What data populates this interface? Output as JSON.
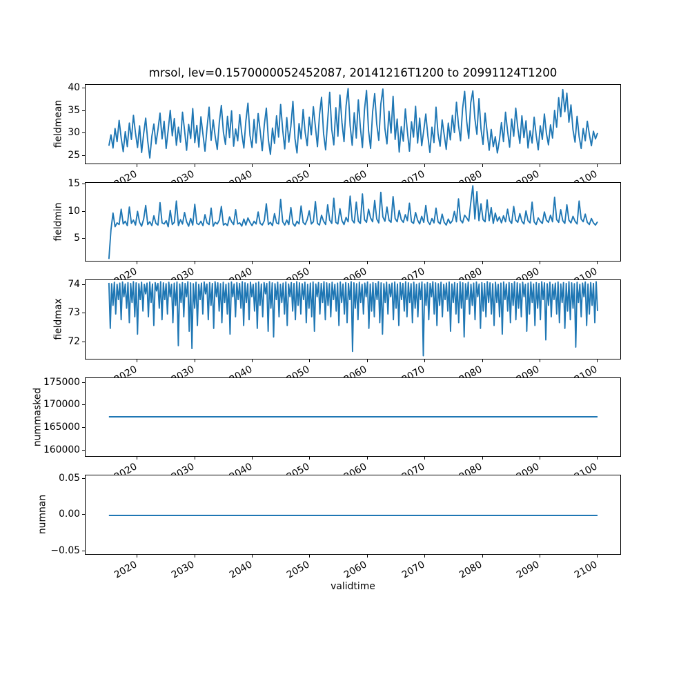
{
  "chart_data": {
    "type": "line",
    "title": "mrsol, lev=0.1570000052452087, 20141216T1200 to 20991124T1200",
    "xlabel": "validtime",
    "line_color": "#1f77b4",
    "background": "#ffffff",
    "grid": false,
    "legend": "none",
    "xlim": [
      2010.9,
      2104.1
    ],
    "x_ticks": [
      2020,
      2030,
      2040,
      2050,
      2060,
      2070,
      2080,
      2090,
      2100
    ],
    "x_tick_labels": [
      "2020",
      "2030",
      "2040",
      "2050",
      "2060",
      "2070",
      "2080",
      "2090",
      "2100"
    ],
    "subplots": [
      {
        "name": "fieldmean",
        "ylabel": "fieldmean",
        "ylim": [
          23.2,
          40.8
        ],
        "yticks": [
          25,
          30,
          35,
          40
        ],
        "ytick_labels": [
          "25",
          "30",
          "35",
          "40"
        ],
        "x_start": 2014.96,
        "x_end": 2099.9,
        "values": [
          27.4,
          29.8,
          26.9,
          31.2,
          28.3,
          33.0,
          29.1,
          26.1,
          30.5,
          27.2,
          32.4,
          28.8,
          34.1,
          30.2,
          27.0,
          31.8,
          25.9,
          30.1,
          33.5,
          28.4,
          24.7,
          29.5,
          32.2,
          27.8,
          31.0,
          34.6,
          28.9,
          32.8,
          26.8,
          30.9,
          35.2,
          29.6,
          33.4,
          27.5,
          31.5,
          28.2,
          34.8,
          30.8,
          26.4,
          32.1,
          29.0,
          35.6,
          28.1,
          31.9,
          27.1,
          33.8,
          29.9,
          26.2,
          31.4,
          35.9,
          28.6,
          33.1,
          29.4,
          26.6,
          32.6,
          36.3,
          30.4,
          27.7,
          33.9,
          29.2,
          35.1,
          27.3,
          31.1,
          28.5,
          34.3,
          30.0,
          26.9,
          32.9,
          36.8,
          29.7,
          27.0,
          33.2,
          28.0,
          34.5,
          30.6,
          26.3,
          32.0,
          35.7,
          28.7,
          25.5,
          31.3,
          27.9,
          34.0,
          29.3,
          36.5,
          30.9,
          26.7,
          33.6,
          28.2,
          31.7,
          37.2,
          29.0,
          25.8,
          32.3,
          28.9,
          35.4,
          30.3,
          27.4,
          33.7,
          29.8,
          36.0,
          31.6,
          27.2,
          34.2,
          38.1,
          30.1,
          26.5,
          33.0,
          39.2,
          31.0,
          27.6,
          35.8,
          29.5,
          38.6,
          32.5,
          28.3,
          36.2,
          40.0,
          31.8,
          27.5,
          34.7,
          29.1,
          37.5,
          31.4,
          27.0,
          35.3,
          39.6,
          30.7,
          26.8,
          34.9,
          38.9,
          32.2,
          28.6,
          36.6,
          39.9,
          31.2,
          27.8,
          35.0,
          30.2,
          38.3,
          28.8,
          33.3,
          26.0,
          31.6,
          28.4,
          35.5,
          30.5,
          26.2,
          32.7,
          29.3,
          36.1,
          28.0,
          33.5,
          27.4,
          30.8,
          34.4,
          29.6,
          25.9,
          31.5,
          28.1,
          35.9,
          30.0,
          27.3,
          33.1,
          29.8,
          26.6,
          32.4,
          28.7,
          34.1,
          30.3,
          37.0,
          31.9,
          28.5,
          35.6,
          39.4,
          32.8,
          29.0,
          36.9,
          39.5,
          33.4,
          29.9,
          37.8,
          31.1,
          27.7,
          34.6,
          30.4,
          26.4,
          31.0,
          27.2,
          29.4,
          25.8,
          28.6,
          32.5,
          28.3,
          34.8,
          30.6,
          27.1,
          33.3,
          29.5,
          35.7,
          31.3,
          27.9,
          34.0,
          29.2,
          32.9,
          26.9,
          30.7,
          28.0,
          33.7,
          29.7,
          26.5,
          31.8,
          28.8,
          34.4,
          30.1,
          27.6,
          32.0,
          29.1,
          35.2,
          31.5,
          38.0,
          33.8,
          39.8,
          34.9,
          39.0,
          32.6,
          36.4,
          30.9,
          28.2,
          33.9,
          29.4,
          26.8,
          31.2,
          28.5,
          32.8,
          29.9,
          27.4,
          30.6,
          28.9,
          30.2
        ]
      },
      {
        "name": "fieldmin",
        "ylabel": "fieldmin",
        "ylim": [
          0.8,
          15.4
        ],
        "yticks": [
          5,
          10,
          15
        ],
        "ytick_labels": [
          "5",
          "10",
          "15"
        ],
        "x_start": 2014.96,
        "x_end": 2099.9,
        "values": [
          1.5,
          6.8,
          9.9,
          7.4,
          8.1,
          7.8,
          10.6,
          7.9,
          8.4,
          7.6,
          11.0,
          8.0,
          8.6,
          7.7,
          10.2,
          8.2,
          7.5,
          8.8,
          11.3,
          7.8,
          8.3,
          7.6,
          9.4,
          8.0,
          7.7,
          11.8,
          8.1,
          7.9,
          8.5,
          7.4,
          10.4,
          7.8,
          8.2,
          12.1,
          7.6,
          8.7,
          7.9,
          10.0,
          8.3,
          7.5,
          8.9,
          7.7,
          11.5,
          8.0,
          7.8,
          8.4,
          7.6,
          9.6,
          8.1,
          7.8,
          10.8,
          7.5,
          8.2,
          7.9,
          8.6,
          11.1,
          7.7,
          8.0,
          7.6,
          9.2,
          8.3,
          7.8,
          10.5,
          7.9,
          8.1,
          7.5,
          8.8,
          7.7,
          9.0,
          8.2,
          7.6,
          8.4,
          7.9,
          10.1,
          8.0,
          7.7,
          8.5,
          11.6,
          7.8,
          8.2,
          7.6,
          9.8,
          8.1,
          7.9,
          12.4,
          8.3,
          7.7,
          8.6,
          7.8,
          10.9,
          8.0,
          7.5,
          8.4,
          7.9,
          11.2,
          8.2,
          7.8,
          8.7,
          10.3,
          7.9,
          8.3,
          12.0,
          8.0,
          7.7,
          9.5,
          8.4,
          7.8,
          11.4,
          8.6,
          8.0,
          12.6,
          8.2,
          7.9,
          10.7,
          8.5,
          7.8,
          9.1,
          8.3,
          13.0,
          8.6,
          8.1,
          11.9,
          8.4,
          8.0,
          13.4,
          8.7,
          8.2,
          10.6,
          9.0,
          8.3,
          12.2,
          8.8,
          8.1,
          13.7,
          9.2,
          8.4,
          11.0,
          8.6,
          8.2,
          12.9,
          8.9,
          8.3,
          10.4,
          8.7,
          8.2,
          9.6,
          8.5,
          11.7,
          8.3,
          8.0,
          10.0,
          8.6,
          7.9,
          9.3,
          8.2,
          11.3,
          8.4,
          7.8,
          8.9,
          8.1,
          10.8,
          8.3,
          7.9,
          9.7,
          8.2,
          7.7,
          8.8,
          8.0,
          8.5,
          10.2,
          8.3,
          12.5,
          8.6,
          8.1,
          9.5,
          9.0,
          8.4,
          11.8,
          14.9,
          8.8,
          13.8,
          8.5,
          11.6,
          8.7,
          8.3,
          12.3,
          8.5,
          10.9,
          8.0,
          9.9,
          8.4,
          9.2,
          8.1,
          9.4,
          8.3,
          10.6,
          8.5,
          8.0,
          11.1,
          8.6,
          8.2,
          9.8,
          8.4,
          7.9,
          10.3,
          8.5,
          8.1,
          11.9,
          8.3,
          7.8,
          9.0,
          8.4,
          8.0,
          10.1,
          8.6,
          8.2,
          9.5,
          8.3,
          12.8,
          8.7,
          8.2,
          10.5,
          8.5,
          8.0,
          11.4,
          8.6,
          8.1,
          9.3,
          8.4,
          7.9,
          12.1,
          8.8,
          8.3,
          9.7,
          8.2,
          7.8,
          8.9,
          8.1,
          7.7,
          8.3
        ]
      },
      {
        "name": "fieldmax",
        "ylabel": "fieldmax",
        "ylim": [
          71.4,
          74.17
        ],
        "yticks": [
          72,
          73,
          74
        ],
        "ytick_labels": [
          "72",
          "73",
          "74"
        ],
        "x_start": 2014.96,
        "x_end": 2099.9,
        "values": [
          74.08,
          72.5,
          74.05,
          73.3,
          74.1,
          73.0,
          74.03,
          73.5,
          74.07,
          72.8,
          74.11,
          73.6,
          74.04,
          73.2,
          74.09,
          72.7,
          74.06,
          73.4,
          74.12,
          72.9,
          74.08,
          72.3,
          74.05,
          73.5,
          74.1,
          73.1,
          74.03,
          73.7,
          74.07,
          72.9,
          74.11,
          73.4,
          74.04,
          72.6,
          74.09,
          73.8,
          74.06,
          73.2,
          74.12,
          72.8,
          74.08,
          73.5,
          74.05,
          73.0,
          74.1,
          73.6,
          74.03,
          72.7,
          74.07,
          73.3,
          74.11,
          71.9,
          74.04,
          73.4,
          74.09,
          72.9,
          74.06,
          73.6,
          74.12,
          72.4,
          74.08,
          71.8,
          74.05,
          73.2,
          74.1,
          72.6,
          74.03,
          73.5,
          74.07,
          73.0,
          74.11,
          73.7,
          74.04,
          72.8,
          74.09,
          73.3,
          74.06,
          72.5,
          74.12,
          73.6,
          74.08,
          73.1,
          74.05,
          72.7,
          74.1,
          73.4,
          74.03,
          73.0,
          74.07,
          72.3,
          74.11,
          73.6,
          74.04,
          72.9,
          74.09,
          73.5,
          74.06,
          73.2,
          74.12,
          72.6,
          74.08,
          73.4,
          74.05,
          72.8,
          74.1,
          73.6,
          74.03,
          73.1,
          74.07,
          72.5,
          74.11,
          73.3,
          74.04,
          72.9,
          74.09,
          73.7,
          74.06,
          72.4,
          74.12,
          73.2,
          74.08,
          72.2,
          74.05,
          73.5,
          74.1,
          72.9,
          74.03,
          73.4,
          74.07,
          73.0,
          74.11,
          72.6,
          74.04,
          73.6,
          74.09,
          73.1,
          74.06,
          72.8,
          74.12,
          73.3,
          74.08,
          73.0,
          74.05,
          73.5,
          74.1,
          72.7,
          74.03,
          73.2,
          74.07,
          72.9,
          74.11,
          72.4,
          74.04,
          73.6,
          74.09,
          73.0,
          74.06,
          73.4,
          74.12,
          72.8,
          74.08,
          73.3,
          74.05,
          72.9,
          74.1,
          73.5,
          74.03,
          73.1,
          74.07,
          72.6,
          74.11,
          73.4,
          74.04,
          73.0,
          74.09,
          72.7,
          74.06,
          73.5,
          74.12,
          71.7,
          74.08,
          73.2,
          74.05,
          72.8,
          74.1,
          73.4,
          74.03,
          73.0,
          74.07,
          73.6,
          74.11,
          72.5,
          74.04,
          73.1,
          74.09,
          72.9,
          74.06,
          73.5,
          74.12,
          72.7,
          74.08,
          72.3,
          74.05,
          73.4,
          74.1,
          73.0,
          74.03,
          73.6,
          74.07,
          72.8,
          74.11,
          73.2,
          74.04,
          72.6,
          74.09,
          73.5,
          74.06,
          73.1,
          74.12,
          72.9,
          74.08,
          73.4,
          74.05,
          72.7,
          74.1,
          73.2,
          74.03,
          72.9,
          74.07,
          73.5,
          74.11,
          71.55,
          74.04,
          73.3,
          74.09,
          72.8,
          74.06,
          73.6,
          74.12,
          73.0,
          74.08,
          72.6,
          74.05,
          73.3,
          74.1,
          72.9,
          74.03,
          73.5,
          74.07,
          73.1,
          74.11,
          72.4,
          74.04,
          73.4,
          74.09,
          73.0,
          74.06,
          72.7,
          74.12,
          73.2,
          74.08,
          72.2,
          74.05,
          73.5,
          74.1,
          73.0,
          74.03,
          73.3,
          74.07,
          72.8,
          74.11,
          73.6,
          74.04,
          72.5,
          74.09,
          73.1,
          74.06,
          72.9,
          74.12,
          73.4,
          74.08,
          73.0,
          74.05,
          72.6,
          74.1,
          73.4,
          74.03,
          72.9,
          74.07,
          72.3,
          74.11,
          73.5,
          74.04,
          73.1,
          74.09,
          72.7,
          74.06,
          73.3,
          74.12,
          72.8,
          74.08,
          73.2,
          74.05,
          72.9,
          74.1,
          73.6,
          74.03,
          72.4,
          74.07,
          73.0,
          74.11,
          73.4,
          74.04,
          72.6,
          74.09,
          73.2,
          74.06,
          72.8,
          74.12,
          73.5,
          74.08,
          72.1,
          74.05,
          73.3,
          74.1,
          72.9,
          74.03,
          73.5,
          74.07,
          73.0,
          74.11,
          72.7,
          74.04,
          73.4,
          74.09,
          72.5,
          74.06,
          73.1,
          74.12,
          72.8,
          74.08,
          73.2,
          74.05,
          71.85,
          74.1,
          73.4,
          74.03,
          72.9,
          74.07,
          73.6,
          74.11,
          72.6,
          74.04,
          73.0,
          74.09,
          73.3,
          74.06,
          72.7,
          74.12,
          73.1
        ]
      },
      {
        "name": "nummasked",
        "ylabel": "nummasked",
        "ylim": [
          158500,
          176200
        ],
        "yticks": [
          160000,
          165000,
          170000,
          175000
        ],
        "ytick_labels": [
          "160000",
          "165000",
          "170000",
          "175000"
        ],
        "x_start": 2014.96,
        "x_end": 2099.9,
        "values": [
          167650,
          167650
        ]
      },
      {
        "name": "numnan",
        "ylabel": "numnan",
        "ylim": [
          -0.055,
          0.055
        ],
        "yticks": [
          -0.05,
          0.0,
          0.05
        ],
        "ytick_labels": [
          "−0.05",
          "0.00",
          "0.05"
        ],
        "x_start": 2014.96,
        "x_end": 2099.9,
        "values": [
          0,
          0
        ]
      }
    ]
  }
}
